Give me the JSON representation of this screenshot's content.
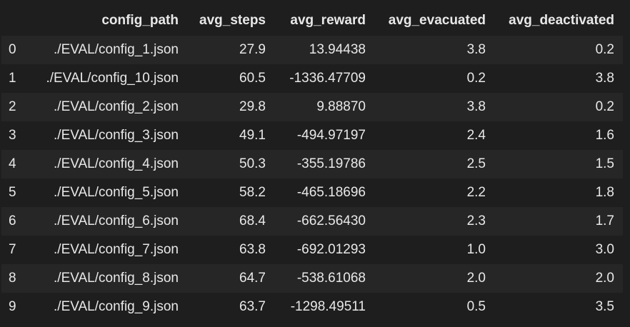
{
  "table": {
    "index_header": "",
    "columns": [
      "config_path",
      "avg_steps",
      "avg_reward",
      "avg_evacuated",
      "avg_deactivated"
    ],
    "rows": [
      {
        "index": "0",
        "config_path": "./EVAL/config_1.json",
        "avg_steps": "27.9",
        "avg_reward": "13.94438",
        "avg_evacuated": "3.8",
        "avg_deactivated": "0.2"
      },
      {
        "index": "1",
        "config_path": "./EVAL/config_10.json",
        "avg_steps": "60.5",
        "avg_reward": "-1336.47709",
        "avg_evacuated": "0.2",
        "avg_deactivated": "3.8"
      },
      {
        "index": "2",
        "config_path": "./EVAL/config_2.json",
        "avg_steps": "29.8",
        "avg_reward": "9.88870",
        "avg_evacuated": "3.8",
        "avg_deactivated": "0.2"
      },
      {
        "index": "3",
        "config_path": "./EVAL/config_3.json",
        "avg_steps": "49.1",
        "avg_reward": "-494.97197",
        "avg_evacuated": "2.4",
        "avg_deactivated": "1.6"
      },
      {
        "index": "4",
        "config_path": "./EVAL/config_4.json",
        "avg_steps": "50.3",
        "avg_reward": "-355.19786",
        "avg_evacuated": "2.5",
        "avg_deactivated": "1.5"
      },
      {
        "index": "5",
        "config_path": "./EVAL/config_5.json",
        "avg_steps": "58.2",
        "avg_reward": "-465.18696",
        "avg_evacuated": "2.2",
        "avg_deactivated": "1.8"
      },
      {
        "index": "6",
        "config_path": "./EVAL/config_6.json",
        "avg_steps": "68.4",
        "avg_reward": "-662.56430",
        "avg_evacuated": "2.3",
        "avg_deactivated": "1.7"
      },
      {
        "index": "7",
        "config_path": "./EVAL/config_7.json",
        "avg_steps": "63.8",
        "avg_reward": "-692.01293",
        "avg_evacuated": "1.0",
        "avg_deactivated": "3.0"
      },
      {
        "index": "8",
        "config_path": "./EVAL/config_8.json",
        "avg_steps": "64.7",
        "avg_reward": "-538.61068",
        "avg_evacuated": "2.0",
        "avg_deactivated": "2.0"
      },
      {
        "index": "9",
        "config_path": "./EVAL/config_9.json",
        "avg_steps": "63.7",
        "avg_reward": "-1298.49511",
        "avg_evacuated": "0.5",
        "avg_deactivated": "3.5"
      }
    ]
  },
  "colors": {
    "background": "#1e1e1e",
    "row_alt": "#262626",
    "text": "#e8e8e8"
  }
}
